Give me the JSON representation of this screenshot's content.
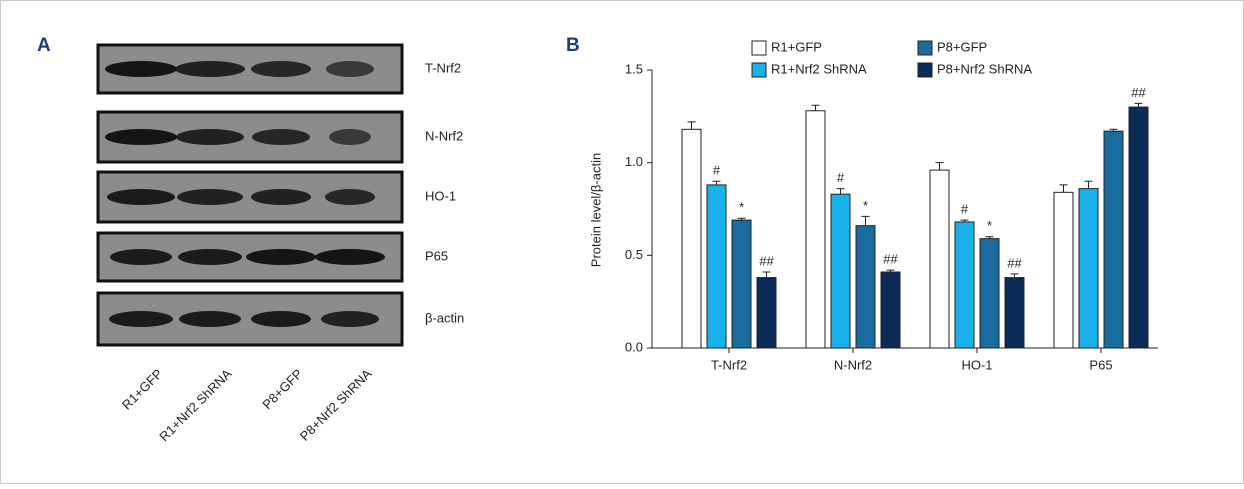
{
  "blot_panel": {
    "label": "A",
    "rows": [
      "T-Nrf2",
      "N-Nrf2",
      "HO-1",
      "P65",
      "β-actin"
    ],
    "lanes": [
      "R1+GFP",
      "R1+Nrf2 ShRNA",
      "P8+GFP",
      "P8+Nrf2 ShRNA"
    ]
  },
  "chart_data": {
    "type": "bar",
    "panel_label": "B",
    "y_label": "Protein level/β-actin",
    "categories": [
      "T-Nrf2",
      "N-Nrf2",
      "HO-1",
      "P65"
    ],
    "series": [
      {
        "name": "R1+GFP",
        "color": "#ffffff",
        "values": [
          1.18,
          1.28,
          0.96,
          0.84
        ],
        "errors": [
          0.04,
          0.03,
          0.04,
          0.04
        ],
        "annotations": [
          null,
          null,
          null,
          null
        ]
      },
      {
        "name": "R1+Nrf2 ShRNA",
        "color": "#1ab2ea",
        "values": [
          0.88,
          0.83,
          0.68,
          0.86
        ],
        "errors": [
          0.02,
          0.03,
          0.01,
          0.04
        ],
        "annotations": [
          "#",
          "#",
          "#",
          null
        ]
      },
      {
        "name": "P8+GFP",
        "color": "#1b6c9e",
        "values": [
          0.69,
          0.66,
          0.59,
          1.17
        ],
        "errors": [
          0.01,
          0.05,
          0.01,
          0.01
        ],
        "annotations": [
          "*",
          "*",
          "*",
          null
        ]
      },
      {
        "name": "P8+Nrf2 ShRNA",
        "color": "#0b2b59",
        "values": [
          0.38,
          0.41,
          0.38,
          1.3
        ],
        "errors": [
          0.03,
          0.01,
          0.02,
          0.02
        ],
        "annotations": [
          "##",
          "##",
          "##",
          "##"
        ]
      }
    ],
    "ylim": [
      0,
      1.5
    ],
    "yticks": [
      {
        "value": 0,
        "label": "0.0"
      },
      0.5,
      {
        "value": 1,
        "label": "1.0"
      },
      1.5
    ],
    "legend": "top"
  }
}
